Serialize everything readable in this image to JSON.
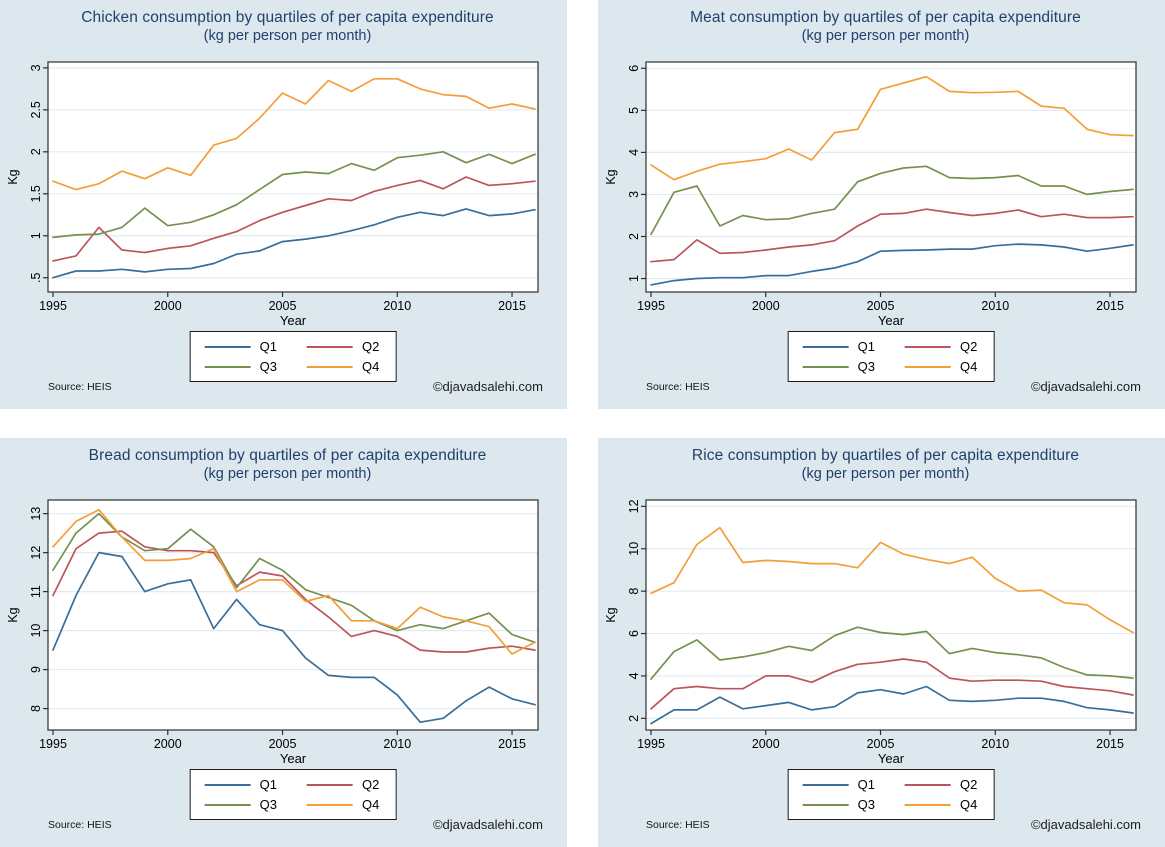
{
  "palette": {
    "panel_bg": "#dce8ed",
    "title_color": "#21406d",
    "axis_color": "#2e2e2e",
    "grid_color": "#e3ebf0",
    "plot_bg": "#ffffff",
    "q1": "#3b6d98",
    "q2": "#bc555b",
    "q3": "#75914f",
    "q4": "#f49e38"
  },
  "legend": {
    "labels": [
      "Q1",
      "Q2",
      "Q3",
      "Q4"
    ]
  },
  "footer": {
    "source": "Source: HEIS",
    "copyright": "©djavadsalehi.com"
  },
  "chart_data": [
    {
      "type": "line",
      "title": "Chicken consumption by quartiles of per capita expenditure",
      "subtitle": "(kg per person per month)",
      "xlabel": "Year",
      "ylabel": "Kg",
      "grid": "horizontal",
      "legend_position": "bottom",
      "x": [
        1995,
        1996,
        1997,
        1998,
        1999,
        2000,
        2001,
        2002,
        2003,
        2004,
        2005,
        2006,
        2007,
        2008,
        2009,
        2010,
        2011,
        2012,
        2013,
        2014,
        2015,
        2016
      ],
      "xticks": [
        1995,
        2000,
        2005,
        2010,
        2015
      ],
      "ylim": [
        0.33,
        3.07
      ],
      "ytick_values": [
        0.5,
        1,
        1.5,
        2,
        2.5,
        3
      ],
      "ytick_labels": [
        ".5",
        "1",
        "1.5",
        "2",
        "2.5",
        "3"
      ],
      "series": [
        {
          "name": "Q1",
          "color": "#3b6d98",
          "values": [
            0.5,
            0.58,
            0.58,
            0.6,
            0.57,
            0.6,
            0.61,
            0.67,
            0.78,
            0.82,
            0.93,
            0.96,
            1.0,
            1.06,
            1.13,
            1.22,
            1.28,
            1.24,
            1.32,
            1.24,
            1.26,
            1.31
          ]
        },
        {
          "name": "Q2",
          "color": "#bc555b",
          "values": [
            0.7,
            0.76,
            1.1,
            0.83,
            0.8,
            0.85,
            0.88,
            0.97,
            1.05,
            1.18,
            1.28,
            1.36,
            1.44,
            1.42,
            1.53,
            1.6,
            1.66,
            1.56,
            1.7,
            1.6,
            1.62,
            1.65
          ]
        },
        {
          "name": "Q3",
          "color": "#75914f",
          "values": [
            0.98,
            1.01,
            1.02,
            1.1,
            1.33,
            1.12,
            1.16,
            1.25,
            1.37,
            1.55,
            1.73,
            1.76,
            1.74,
            1.86,
            1.78,
            1.93,
            1.96,
            2.0,
            1.87,
            1.97,
            1.86,
            1.97
          ]
        },
        {
          "name": "Q4",
          "color": "#f49e38",
          "values": [
            1.65,
            1.55,
            1.62,
            1.77,
            1.68,
            1.81,
            1.72,
            2.08,
            2.16,
            2.4,
            2.7,
            2.57,
            2.85,
            2.72,
            2.87,
            2.87,
            2.75,
            2.68,
            2.66,
            2.52,
            2.57,
            2.51
          ]
        }
      ]
    },
    {
      "type": "line",
      "title": "Meat consumption by quartiles of per capita expenditure",
      "subtitle": "(kg per person per month)",
      "xlabel": "Year",
      "ylabel": "Kg",
      "grid": "horizontal",
      "legend_position": "bottom",
      "x": [
        1995,
        1996,
        1997,
        1998,
        1999,
        2000,
        2001,
        2002,
        2003,
        2004,
        2005,
        2006,
        2007,
        2008,
        2009,
        2010,
        2011,
        2012,
        2013,
        2014,
        2015,
        2016
      ],
      "xticks": [
        1995,
        2000,
        2005,
        2010,
        2015
      ],
      "ylim": [
        0.68,
        6.15
      ],
      "ytick_values": [
        1,
        2,
        3,
        4,
        5,
        6
      ],
      "ytick_labels": [
        "1",
        "2",
        "3",
        "4",
        "5",
        "6"
      ],
      "series": [
        {
          "name": "Q1",
          "color": "#3b6d98",
          "values": [
            0.85,
            0.95,
            1.0,
            1.02,
            1.02,
            1.07,
            1.07,
            1.17,
            1.25,
            1.4,
            1.65,
            1.67,
            1.68,
            1.7,
            1.7,
            1.78,
            1.82,
            1.8,
            1.75,
            1.65,
            1.72,
            1.8
          ]
        },
        {
          "name": "Q2",
          "color": "#bc555b",
          "values": [
            1.4,
            1.45,
            1.92,
            1.6,
            1.62,
            1.68,
            1.75,
            1.8,
            1.9,
            2.25,
            2.53,
            2.55,
            2.65,
            2.57,
            2.5,
            2.55,
            2.63,
            2.47,
            2.53,
            2.45,
            2.45,
            2.47
          ]
        },
        {
          "name": "Q3",
          "color": "#75914f",
          "values": [
            2.05,
            3.05,
            3.2,
            2.25,
            2.5,
            2.4,
            2.42,
            2.55,
            2.65,
            3.3,
            3.5,
            3.63,
            3.67,
            3.4,
            3.38,
            3.4,
            3.45,
            3.2,
            3.2,
            3.0,
            3.07,
            3.12
          ]
        },
        {
          "name": "Q4",
          "color": "#f49e38",
          "values": [
            3.7,
            3.35,
            3.55,
            3.72,
            3.78,
            3.85,
            4.08,
            3.82,
            4.47,
            4.55,
            5.5,
            5.65,
            5.8,
            5.45,
            5.42,
            5.43,
            5.45,
            5.1,
            5.05,
            4.55,
            4.42,
            4.4
          ]
        }
      ]
    },
    {
      "type": "line",
      "title": "Bread consumption by quartiles of per capita expenditure",
      "subtitle": "(kg per person per month)",
      "xlabel": "Year",
      "ylabel": "Kg",
      "grid": "horizontal",
      "legend_position": "bottom",
      "x": [
        1995,
        1996,
        1997,
        1998,
        1999,
        2000,
        2001,
        2002,
        2003,
        2004,
        2005,
        2006,
        2007,
        2008,
        2009,
        2010,
        2011,
        2012,
        2013,
        2014,
        2015,
        2016
      ],
      "xticks": [
        1995,
        2000,
        2005,
        2010,
        2015
      ],
      "ylim": [
        7.45,
        13.35
      ],
      "ytick_values": [
        8,
        9,
        10,
        11,
        12,
        13
      ],
      "ytick_labels": [
        "8",
        "9",
        "10",
        "11",
        "12",
        "13"
      ],
      "series": [
        {
          "name": "Q1",
          "color": "#3b6d98",
          "values": [
            9.5,
            10.9,
            12.0,
            11.9,
            11.0,
            11.2,
            11.3,
            10.05,
            10.8,
            10.15,
            10.0,
            9.3,
            8.85,
            8.8,
            8.8,
            8.35,
            7.65,
            7.75,
            8.2,
            8.55,
            8.25,
            8.1
          ]
        },
        {
          "name": "Q2",
          "color": "#bc555b",
          "values": [
            10.9,
            12.1,
            12.5,
            12.55,
            12.15,
            12.05,
            12.05,
            12.0,
            11.15,
            11.5,
            11.4,
            10.8,
            10.35,
            9.85,
            10.0,
            9.85,
            9.5,
            9.45,
            9.45,
            9.55,
            9.6,
            9.5
          ]
        },
        {
          "name": "Q3",
          "color": "#75914f",
          "values": [
            11.55,
            12.5,
            13.0,
            12.4,
            12.05,
            12.1,
            12.6,
            12.15,
            11.1,
            11.85,
            11.55,
            11.05,
            10.85,
            10.65,
            10.25,
            10.0,
            10.15,
            10.05,
            10.25,
            10.45,
            9.9,
            9.7
          ]
        },
        {
          "name": "Q4",
          "color": "#f49e38",
          "values": [
            12.15,
            12.8,
            13.1,
            12.4,
            11.8,
            11.8,
            11.85,
            12.1,
            11.0,
            11.3,
            11.3,
            10.75,
            10.9,
            10.25,
            10.25,
            10.05,
            10.6,
            10.35,
            10.25,
            10.1,
            9.4,
            9.7
          ]
        }
      ]
    },
    {
      "type": "line",
      "title": "Rice consumption by quartiles of per capita expenditure",
      "subtitle": "(kg per person per month)",
      "xlabel": "Year",
      "ylabel": "Kg",
      "grid": "horizontal",
      "legend_position": "bottom",
      "x": [
        1995,
        1996,
        1997,
        1998,
        1999,
        2000,
        2001,
        2002,
        2003,
        2004,
        2005,
        2006,
        2007,
        2008,
        2009,
        2010,
        2011,
        2012,
        2013,
        2014,
        2015,
        2016
      ],
      "xticks": [
        1995,
        2000,
        2005,
        2010,
        2015
      ],
      "ylim": [
        1.45,
        12.3
      ],
      "ytick_values": [
        2,
        4,
        6,
        8,
        10,
        12
      ],
      "ytick_labels": [
        "2",
        "4",
        "6",
        "8",
        "10",
        "12"
      ],
      "series": [
        {
          "name": "Q1",
          "color": "#3b6d98",
          "values": [
            1.75,
            2.4,
            2.4,
            3.0,
            2.45,
            2.6,
            2.75,
            2.4,
            2.55,
            3.2,
            3.35,
            3.15,
            3.5,
            2.85,
            2.8,
            2.85,
            2.95,
            2.95,
            2.8,
            2.5,
            2.4,
            2.25
          ]
        },
        {
          "name": "Q2",
          "color": "#bc555b",
          "values": [
            2.45,
            3.4,
            3.5,
            3.4,
            3.4,
            4.0,
            4.0,
            3.7,
            4.2,
            4.55,
            4.65,
            4.8,
            4.65,
            3.9,
            3.75,
            3.8,
            3.8,
            3.75,
            3.5,
            3.4,
            3.3,
            3.1
          ]
        },
        {
          "name": "Q3",
          "color": "#75914f",
          "values": [
            3.85,
            5.15,
            5.7,
            4.75,
            4.9,
            5.1,
            5.4,
            5.2,
            5.9,
            6.3,
            6.05,
            5.95,
            6.1,
            5.05,
            5.3,
            5.1,
            5.0,
            4.85,
            4.4,
            4.05,
            4.0,
            3.9
          ]
        },
        {
          "name": "Q4",
          "color": "#f49e38",
          "values": [
            7.9,
            8.4,
            10.2,
            11.0,
            9.35,
            9.45,
            9.4,
            9.3,
            9.3,
            9.1,
            10.3,
            9.75,
            9.5,
            9.3,
            9.6,
            8.6,
            8.0,
            8.05,
            7.45,
            7.35,
            6.65,
            6.05
          ]
        }
      ]
    }
  ]
}
